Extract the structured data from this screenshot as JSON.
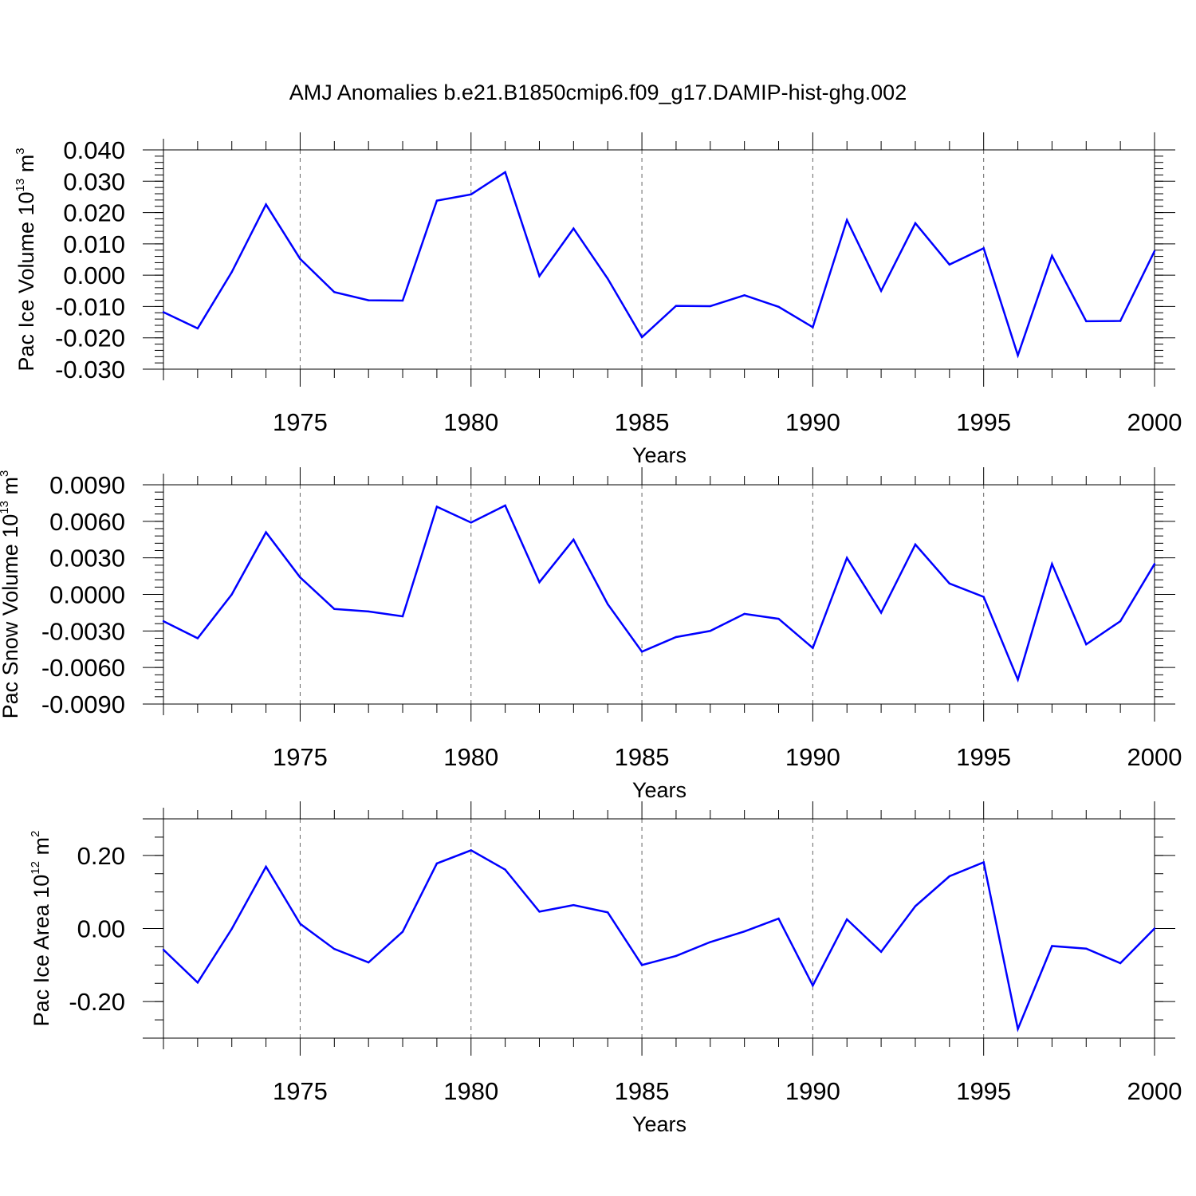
{
  "title": "AMJ Anomalies b.e21.B1850cmip6.f09_g17.DAMIP-hist-ghg.002",
  "colors": {
    "line": "#0000ff",
    "axis": "#000000",
    "grid": "#666666"
  },
  "chart_data": [
    {
      "type": "line",
      "ylabel": {
        "base": "Pac Ice Volume 10",
        "exp": "13",
        "unit": " m",
        "unit_exp": "3"
      },
      "xlabel": "Years",
      "xlim": [
        1971,
        2000
      ],
      "ylim": [
        -0.03,
        0.04
      ],
      "y_ticks": [
        0.04,
        0.03,
        0.02,
        0.01,
        0.0,
        -0.01,
        -0.02,
        -0.03
      ],
      "y_tick_labels": [
        "0.040",
        "0.030",
        "0.020",
        "0.010",
        "0.000",
        "-0.010",
        "-0.020",
        "-0.030"
      ],
      "y_minor_step": 0.002,
      "x_ticks": [
        1975,
        1980,
        1985,
        1990,
        1995,
        2000
      ],
      "x_tick_labels": [
        "1975",
        "1980",
        "1985",
        "1990",
        "1995",
        "2000"
      ],
      "grid": "vertical dashed at major x ticks",
      "series": [
        {
          "x": [
            1971,
            1972,
            1973,
            1974,
            1975,
            1976,
            1977,
            1978,
            1979,
            1980,
            1981,
            1982,
            1983,
            1984,
            1985,
            1986,
            1987,
            1988,
            1989,
            1990,
            1991,
            1992,
            1993,
            1994,
            1995,
            1996,
            1997,
            1998,
            1999,
            2000
          ],
          "values": [
            -0.0118,
            -0.017,
            0.001,
            0.0226,
            0.0052,
            -0.0054,
            -0.008,
            -0.0081,
            0.0238,
            0.0258,
            0.0329,
            -0.0003,
            0.0149,
            -0.0011,
            -0.0198,
            -0.0098,
            -0.0099,
            -0.0064,
            -0.0101,
            -0.0166,
            0.0176,
            -0.005,
            0.0166,
            0.0034,
            0.0086,
            -0.0256,
            0.0062,
            -0.0147,
            -0.0146,
            0.0077
          ]
        }
      ]
    },
    {
      "type": "line",
      "ylabel": {
        "base": "Pac Snow Volume 10",
        "exp": "13",
        "unit": " m",
        "unit_exp": "3"
      },
      "xlabel": "Years",
      "xlim": [
        1971,
        2000
      ],
      "ylim": [
        -0.009,
        0.009
      ],
      "y_ticks": [
        0.009,
        0.006,
        0.003,
        0.0,
        -0.003,
        -0.006,
        -0.009
      ],
      "y_tick_labels": [
        "0.0090",
        "0.0060",
        "0.0030",
        "0.0000",
        "-0.0030",
        "-0.0060",
        "-0.0090"
      ],
      "y_minor_step": 0.0006,
      "x_ticks": [
        1975,
        1980,
        1985,
        1990,
        1995,
        2000
      ],
      "x_tick_labels": [
        "1975",
        "1980",
        "1985",
        "1990",
        "1995",
        "2000"
      ],
      "grid": "vertical dashed at major x ticks",
      "series": [
        {
          "x": [
            1971,
            1972,
            1973,
            1974,
            1975,
            1976,
            1977,
            1978,
            1979,
            1980,
            1981,
            1982,
            1983,
            1984,
            1985,
            1986,
            1987,
            1988,
            1989,
            1990,
            1991,
            1992,
            1993,
            1994,
            1995,
            1996,
            1997,
            1998,
            1999,
            2000
          ],
          "values": [
            -0.0022,
            -0.0036,
            0.0,
            0.0051,
            0.0014,
            -0.0012,
            -0.0014,
            -0.0018,
            0.0072,
            0.0059,
            0.0073,
            0.001,
            0.0045,
            -0.0008,
            -0.0047,
            -0.0035,
            -0.003,
            -0.0016,
            -0.002,
            -0.0044,
            0.003,
            -0.0015,
            0.0041,
            0.0009,
            -0.0002,
            -0.007,
            0.0025,
            -0.0041,
            -0.0022,
            0.0025
          ]
        }
      ]
    },
    {
      "type": "line",
      "ylabel": {
        "base": "Pac Ice Area 10",
        "exp": "12",
        "unit": " m",
        "unit_exp": "2"
      },
      "xlabel": "Years",
      "xlim": [
        1971,
        2000
      ],
      "ylim": [
        -0.3,
        0.3
      ],
      "y_ticks": [
        0.2,
        0.0,
        -0.2
      ],
      "y_tick_labels": [
        "0.20",
        "0.00",
        "-0.20"
      ],
      "y_minor_step": 0.05,
      "x_ticks": [
        1975,
        1980,
        1985,
        1990,
        1995,
        2000
      ],
      "x_tick_labels": [
        "1975",
        "1980",
        "1985",
        "1990",
        "1995",
        "2000"
      ],
      "grid": "vertical dashed at major x ticks",
      "series": [
        {
          "x": [
            1971,
            1972,
            1973,
            1974,
            1975,
            1976,
            1977,
            1978,
            1979,
            1980,
            1981,
            1982,
            1983,
            1984,
            1985,
            1986,
            1987,
            1988,
            1989,
            1990,
            1991,
            1992,
            1993,
            1994,
            1995,
            1996,
            1997,
            1998,
            1999,
            2000
          ],
          "values": [
            -0.058,
            -0.148,
            -0.001,
            0.169,
            0.013,
            -0.056,
            -0.093,
            -0.009,
            0.178,
            0.214,
            0.161,
            0.046,
            0.064,
            0.044,
            -0.1,
            -0.075,
            -0.037,
            -0.008,
            0.027,
            -0.156,
            0.025,
            -0.064,
            0.061,
            0.143,
            0.181,
            -0.275,
            -0.048,
            -0.055,
            -0.095,
            0.0
          ]
        }
      ]
    }
  ]
}
